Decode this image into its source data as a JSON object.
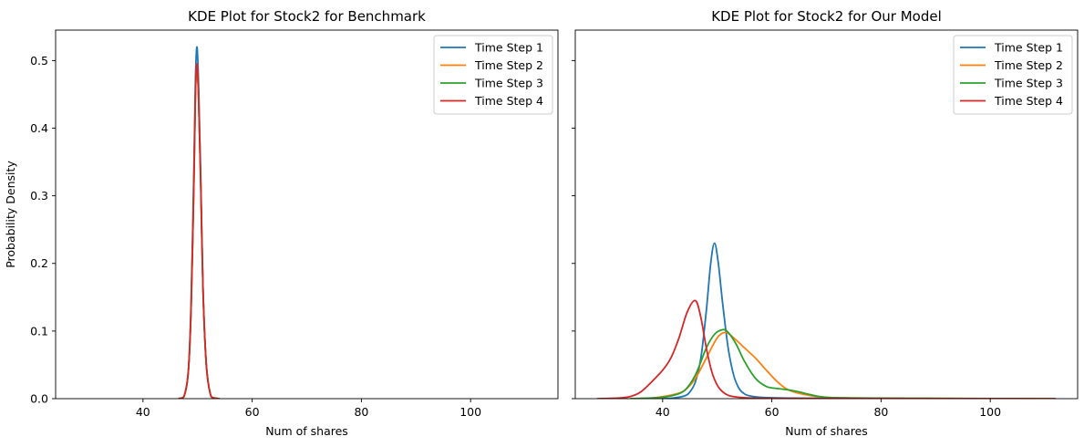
{
  "chart_data": [
    {
      "type": "line",
      "title": "KDE Plot for Stock2 for Benchmark",
      "xlabel": "Num of shares",
      "ylabel": "Probability Density",
      "xlim": [
        24,
        116
      ],
      "ylim": [
        0,
        0.545
      ],
      "xticks": [
        "40",
        "60",
        "80",
        "100"
      ],
      "xtick_values": [
        40,
        60,
        80,
        100
      ],
      "yticks": [
        "0.0",
        "0.1",
        "0.2",
        "0.3",
        "0.4",
        "0.5"
      ],
      "ytick_values": [
        0,
        0.1,
        0.2,
        0.3,
        0.4,
        0.5
      ],
      "show_ytick_labels": true,
      "grid": false,
      "legend_position": "top-right",
      "series": [
        {
          "name": "Time Step 1",
          "color": "#1f77b4",
          "x": [
            46.5,
            47.5,
            48.3,
            48.8,
            49.3,
            49.6,
            49.9,
            50.2,
            50.6,
            51.0,
            51.6,
            52.3,
            53.0,
            54.0
          ],
          "y": [
            0,
            0.003,
            0.04,
            0.14,
            0.33,
            0.47,
            0.52,
            0.46,
            0.32,
            0.16,
            0.05,
            0.008,
            0.001,
            0
          ]
        },
        {
          "name": "Time Step 2",
          "color": "#ff7f0e",
          "x": [
            46.5,
            47.5,
            48.3,
            48.8,
            49.3,
            49.6,
            49.9,
            50.2,
            50.6,
            51.0,
            51.6,
            52.3,
            53.0,
            54.0
          ],
          "y": [
            0,
            0.003,
            0.04,
            0.13,
            0.31,
            0.45,
            0.495,
            0.44,
            0.31,
            0.16,
            0.05,
            0.008,
            0.001,
            0
          ]
        },
        {
          "name": "Time Step 3",
          "color": "#2ca02c",
          "x": [
            46.5,
            47.5,
            48.3,
            48.8,
            49.3,
            49.6,
            49.9,
            50.2,
            50.6,
            51.0,
            51.6,
            52.3,
            53.0,
            54.0
          ],
          "y": [
            0,
            0.003,
            0.04,
            0.13,
            0.31,
            0.45,
            0.49,
            0.44,
            0.31,
            0.16,
            0.05,
            0.008,
            0.001,
            0
          ]
        },
        {
          "name": "Time Step 4",
          "color": "#d62728",
          "x": [
            46.5,
            47.5,
            48.3,
            48.8,
            49.3,
            49.6,
            49.9,
            50.2,
            50.6,
            51.0,
            51.6,
            52.3,
            53.0,
            54.0
          ],
          "y": [
            0,
            0.003,
            0.04,
            0.13,
            0.31,
            0.45,
            0.495,
            0.44,
            0.31,
            0.16,
            0.05,
            0.008,
            0.001,
            0
          ]
        }
      ]
    },
    {
      "type": "line",
      "title": "KDE Plot for Stock2 for Our Model",
      "xlabel": "Num of shares",
      "ylabel": "",
      "xlim": [
        24,
        116
      ],
      "ylim": [
        0,
        0.545
      ],
      "xticks": [
        "40",
        "60",
        "80",
        "100"
      ],
      "xtick_values": [
        40,
        60,
        80,
        100
      ],
      "yticks": [
        "0.0",
        "0.1",
        "0.2",
        "0.3",
        "0.4",
        "0.5"
      ],
      "ytick_values": [
        0,
        0.1,
        0.2,
        0.3,
        0.4,
        0.5
      ],
      "show_ytick_labels": false,
      "grid": false,
      "legend_position": "top-right",
      "series": [
        {
          "name": "Time Step 1",
          "color": "#1f77b4",
          "x": [
            40,
            42,
            44,
            45,
            46,
            47,
            48,
            48.8,
            49.5,
            50.2,
            51,
            52,
            53,
            54,
            55,
            56,
            58,
            62,
            70,
            90,
            112
          ],
          "y": [
            0,
            0.001,
            0.004,
            0.01,
            0.025,
            0.06,
            0.13,
            0.2,
            0.23,
            0.2,
            0.14,
            0.075,
            0.035,
            0.015,
            0.007,
            0.004,
            0.002,
            0.001,
            0.0005,
            0.0002,
            0
          ]
        },
        {
          "name": "Time Step 2",
          "color": "#ff7f0e",
          "x": [
            34,
            38,
            40,
            42,
            44,
            46,
            48,
            50,
            51.5,
            53,
            55,
            57,
            59,
            61,
            63,
            66,
            70,
            75,
            85,
            100,
            112
          ],
          "y": [
            0,
            0.001,
            0.003,
            0.006,
            0.012,
            0.03,
            0.06,
            0.09,
            0.098,
            0.09,
            0.075,
            0.06,
            0.042,
            0.025,
            0.013,
            0.006,
            0.002,
            0.001,
            0.0005,
            0.0002,
            0
          ]
        },
        {
          "name": "Time Step 3",
          "color": "#2ca02c",
          "x": [
            34,
            38,
            40,
            42,
            44,
            46,
            48,
            49.5,
            51,
            52,
            53.5,
            55,
            57,
            59,
            61,
            63,
            65,
            67,
            70,
            75,
            85,
            100,
            112
          ],
          "y": [
            0,
            0.001,
            0.002,
            0.005,
            0.012,
            0.035,
            0.075,
            0.095,
            0.102,
            0.098,
            0.08,
            0.055,
            0.03,
            0.018,
            0.015,
            0.013,
            0.01,
            0.006,
            0.002,
            0.001,
            0.0005,
            0.0002,
            0
          ]
        },
        {
          "name": "Time Step 4",
          "color": "#d62728",
          "x": [
            28,
            32,
            34,
            36,
            38,
            40,
            41.5,
            43,
            44.5,
            46,
            47,
            48,
            49,
            50,
            51,
            52,
            53,
            54,
            56,
            60,
            70,
            85,
            100,
            112
          ],
          "y": [
            0,
            0.001,
            0.003,
            0.01,
            0.025,
            0.042,
            0.06,
            0.09,
            0.128,
            0.145,
            0.12,
            0.075,
            0.04,
            0.02,
            0.01,
            0.005,
            0.003,
            0.002,
            0.001,
            0.0005,
            0.0003,
            0.0002,
            0.0001,
            0
          ]
        }
      ]
    }
  ]
}
